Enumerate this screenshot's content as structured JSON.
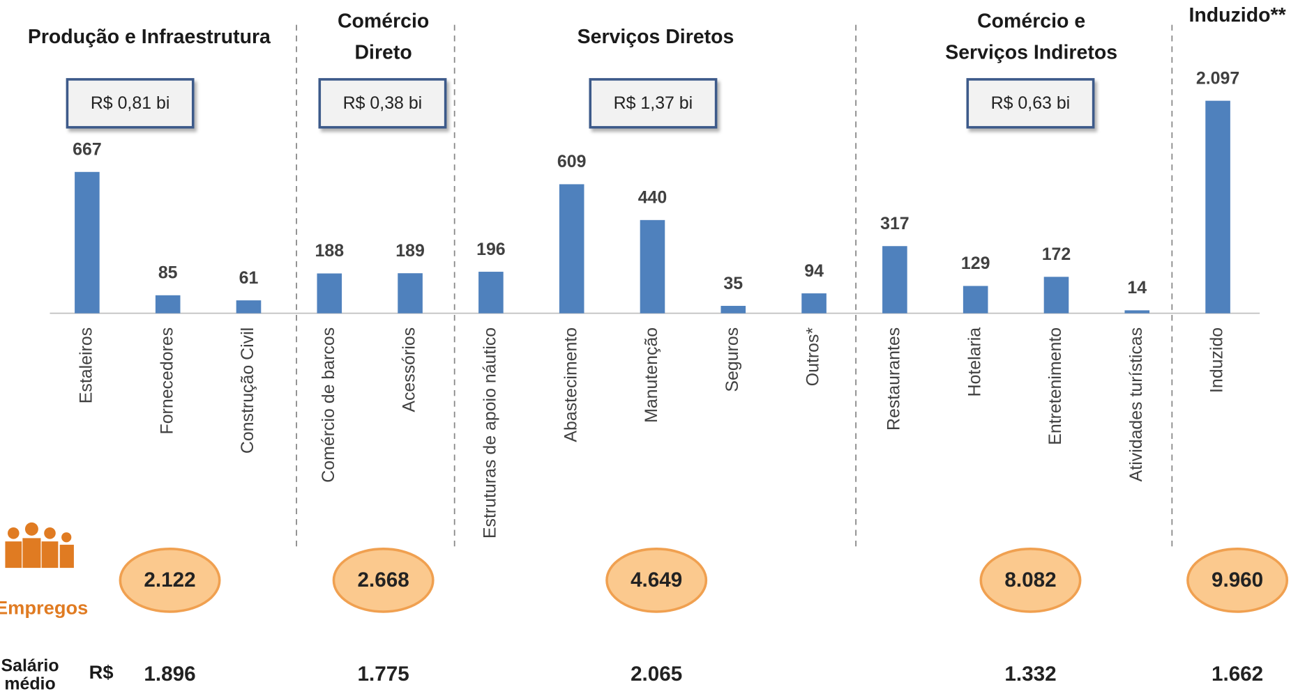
{
  "chart_data": [
    {
      "type": "bar",
      "color": "#4f81bd",
      "ylim": [
        0,
        1100
      ],
      "groups": [
        {
          "title": [
            "Produção e Infraestrutura"
          ],
          "revenue": "R$ 0,81 bi",
          "jobs": "2.122",
          "salary": "1.896",
          "categories": [
            "Estaleiros",
            "Fornecedores",
            "Construção Civil"
          ],
          "values": [
            667,
            85,
            61
          ]
        },
        {
          "title": [
            "Comércio",
            "Direto"
          ],
          "revenue": "R$ 0,38 bi",
          "jobs": "2.668",
          "salary": "1.775",
          "categories": [
            "Comércio de barcos",
            "Acessórios"
          ],
          "values": [
            188,
            189
          ]
        },
        {
          "title": [
            "Serviços Diretos"
          ],
          "revenue": "R$ 1,37 bi",
          "jobs": "4.649",
          "salary": "2.065",
          "categories": [
            "Estruturas de apoio náutico",
            "Abastecimento",
            "Manutenção",
            "Seguros",
            "Outros*"
          ],
          "values": [
            196,
            609,
            440,
            35,
            94
          ]
        },
        {
          "title": [
            "Comércio e",
            "Serviços Indiretos"
          ],
          "revenue": "R$ 0,63 bi",
          "jobs": "8.082",
          "salary": "1.332",
          "categories": [
            "Restaurantes",
            "Hotelaria",
            "Entretenimento",
            "Atividades turísticas"
          ],
          "values": [
            317,
            129,
            172,
            14
          ]
        }
      ],
      "jobs_label": "Empregos",
      "salary_label": "Salário médio",
      "currency": "R$"
    },
    {
      "type": "bar",
      "color": "#4f81bd",
      "ylim": [
        0,
        2300
      ],
      "title": "Induzido**",
      "jobs": "9.960",
      "salary": "1.662",
      "categories": [
        "Induzido"
      ],
      "values": [
        2097
      ],
      "value_labels": [
        "2.097"
      ]
    }
  ]
}
